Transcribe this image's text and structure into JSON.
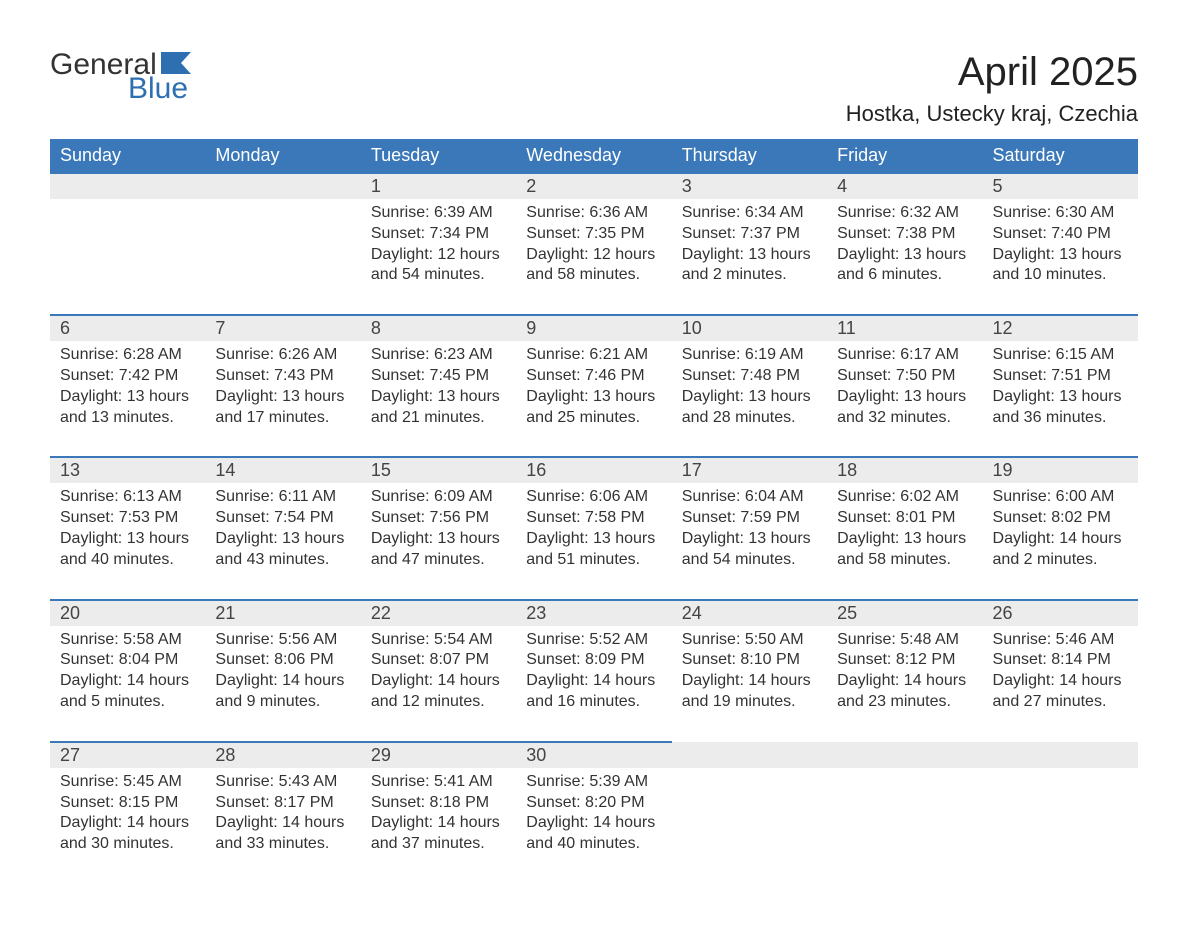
{
  "logo": {
    "text1": "General",
    "text2": "Blue",
    "color_dark": "#333333",
    "color_blue": "#2d6fb0"
  },
  "title": {
    "month": "April 2025",
    "location": "Hostka, Ustecky kraj, Czechia"
  },
  "colors": {
    "header_bg": "#3a78b9",
    "header_text": "#ffffff",
    "daynum_bg": "#ececec",
    "row_border": "#3a78b9",
    "text": "#333333",
    "background": "#ffffff"
  },
  "typography": {
    "title_fontsize": 40,
    "location_fontsize": 22,
    "header_fontsize": 18,
    "daynum_fontsize": 18,
    "cell_fontsize": 16,
    "font_family": "Segoe UI, Arial, sans-serif"
  },
  "daysOfWeek": [
    "Sunday",
    "Monday",
    "Tuesday",
    "Wednesday",
    "Thursday",
    "Friday",
    "Saturday"
  ],
  "weeks": [
    [
      {
        "day": "",
        "sunrise": "",
        "sunset": "",
        "daylight": ""
      },
      {
        "day": "",
        "sunrise": "",
        "sunset": "",
        "daylight": ""
      },
      {
        "day": "1",
        "sunrise": "Sunrise: 6:39 AM",
        "sunset": "Sunset: 7:34 PM",
        "daylight": "Daylight: 12 hours and 54 minutes."
      },
      {
        "day": "2",
        "sunrise": "Sunrise: 6:36 AM",
        "sunset": "Sunset: 7:35 PM",
        "daylight": "Daylight: 12 hours and 58 minutes."
      },
      {
        "day": "3",
        "sunrise": "Sunrise: 6:34 AM",
        "sunset": "Sunset: 7:37 PM",
        "daylight": "Daylight: 13 hours and 2 minutes."
      },
      {
        "day": "4",
        "sunrise": "Sunrise: 6:32 AM",
        "sunset": "Sunset: 7:38 PM",
        "daylight": "Daylight: 13 hours and 6 minutes."
      },
      {
        "day": "5",
        "sunrise": "Sunrise: 6:30 AM",
        "sunset": "Sunset: 7:40 PM",
        "daylight": "Daylight: 13 hours and 10 minutes."
      }
    ],
    [
      {
        "day": "6",
        "sunrise": "Sunrise: 6:28 AM",
        "sunset": "Sunset: 7:42 PM",
        "daylight": "Daylight: 13 hours and 13 minutes."
      },
      {
        "day": "7",
        "sunrise": "Sunrise: 6:26 AM",
        "sunset": "Sunset: 7:43 PM",
        "daylight": "Daylight: 13 hours and 17 minutes."
      },
      {
        "day": "8",
        "sunrise": "Sunrise: 6:23 AM",
        "sunset": "Sunset: 7:45 PM",
        "daylight": "Daylight: 13 hours and 21 minutes."
      },
      {
        "day": "9",
        "sunrise": "Sunrise: 6:21 AM",
        "sunset": "Sunset: 7:46 PM",
        "daylight": "Daylight: 13 hours and 25 minutes."
      },
      {
        "day": "10",
        "sunrise": "Sunrise: 6:19 AM",
        "sunset": "Sunset: 7:48 PM",
        "daylight": "Daylight: 13 hours and 28 minutes."
      },
      {
        "day": "11",
        "sunrise": "Sunrise: 6:17 AM",
        "sunset": "Sunset: 7:50 PM",
        "daylight": "Daylight: 13 hours and 32 minutes."
      },
      {
        "day": "12",
        "sunrise": "Sunrise: 6:15 AM",
        "sunset": "Sunset: 7:51 PM",
        "daylight": "Daylight: 13 hours and 36 minutes."
      }
    ],
    [
      {
        "day": "13",
        "sunrise": "Sunrise: 6:13 AM",
        "sunset": "Sunset: 7:53 PM",
        "daylight": "Daylight: 13 hours and 40 minutes."
      },
      {
        "day": "14",
        "sunrise": "Sunrise: 6:11 AM",
        "sunset": "Sunset: 7:54 PM",
        "daylight": "Daylight: 13 hours and 43 minutes."
      },
      {
        "day": "15",
        "sunrise": "Sunrise: 6:09 AM",
        "sunset": "Sunset: 7:56 PM",
        "daylight": "Daylight: 13 hours and 47 minutes."
      },
      {
        "day": "16",
        "sunrise": "Sunrise: 6:06 AM",
        "sunset": "Sunset: 7:58 PM",
        "daylight": "Daylight: 13 hours and 51 minutes."
      },
      {
        "day": "17",
        "sunrise": "Sunrise: 6:04 AM",
        "sunset": "Sunset: 7:59 PM",
        "daylight": "Daylight: 13 hours and 54 minutes."
      },
      {
        "day": "18",
        "sunrise": "Sunrise: 6:02 AM",
        "sunset": "Sunset: 8:01 PM",
        "daylight": "Daylight: 13 hours and 58 minutes."
      },
      {
        "day": "19",
        "sunrise": "Sunrise: 6:00 AM",
        "sunset": "Sunset: 8:02 PM",
        "daylight": "Daylight: 14 hours and 2 minutes."
      }
    ],
    [
      {
        "day": "20",
        "sunrise": "Sunrise: 5:58 AM",
        "sunset": "Sunset: 8:04 PM",
        "daylight": "Daylight: 14 hours and 5 minutes."
      },
      {
        "day": "21",
        "sunrise": "Sunrise: 5:56 AM",
        "sunset": "Sunset: 8:06 PM",
        "daylight": "Daylight: 14 hours and 9 minutes."
      },
      {
        "day": "22",
        "sunrise": "Sunrise: 5:54 AM",
        "sunset": "Sunset: 8:07 PM",
        "daylight": "Daylight: 14 hours and 12 minutes."
      },
      {
        "day": "23",
        "sunrise": "Sunrise: 5:52 AM",
        "sunset": "Sunset: 8:09 PM",
        "daylight": "Daylight: 14 hours and 16 minutes."
      },
      {
        "day": "24",
        "sunrise": "Sunrise: 5:50 AM",
        "sunset": "Sunset: 8:10 PM",
        "daylight": "Daylight: 14 hours and 19 minutes."
      },
      {
        "day": "25",
        "sunrise": "Sunrise: 5:48 AM",
        "sunset": "Sunset: 8:12 PM",
        "daylight": "Daylight: 14 hours and 23 minutes."
      },
      {
        "day": "26",
        "sunrise": "Sunrise: 5:46 AM",
        "sunset": "Sunset: 8:14 PM",
        "daylight": "Daylight: 14 hours and 27 minutes."
      }
    ],
    [
      {
        "day": "27",
        "sunrise": "Sunrise: 5:45 AM",
        "sunset": "Sunset: 8:15 PM",
        "daylight": "Daylight: 14 hours and 30 minutes."
      },
      {
        "day": "28",
        "sunrise": "Sunrise: 5:43 AM",
        "sunset": "Sunset: 8:17 PM",
        "daylight": "Daylight: 14 hours and 33 minutes."
      },
      {
        "day": "29",
        "sunrise": "Sunrise: 5:41 AM",
        "sunset": "Sunset: 8:18 PM",
        "daylight": "Daylight: 14 hours and 37 minutes."
      },
      {
        "day": "30",
        "sunrise": "Sunrise: 5:39 AM",
        "sunset": "Sunset: 8:20 PM",
        "daylight": "Daylight: 14 hours and 40 minutes."
      },
      {
        "day": "",
        "sunrise": "",
        "sunset": "",
        "daylight": ""
      },
      {
        "day": "",
        "sunrise": "",
        "sunset": "",
        "daylight": ""
      },
      {
        "day": "",
        "sunrise": "",
        "sunset": "",
        "daylight": ""
      }
    ]
  ]
}
